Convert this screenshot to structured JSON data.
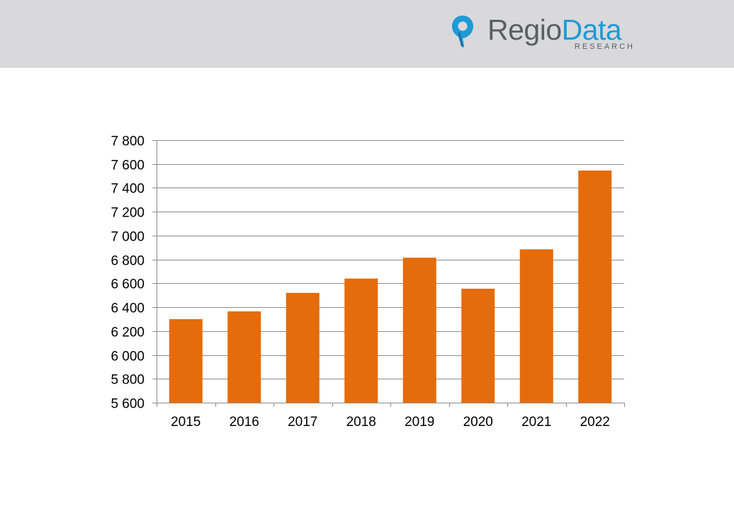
{
  "header": {
    "logo": {
      "name_part1": "Regio",
      "name_part2": "Data",
      "subtitle": "RESEARCH",
      "icon": "map-pin-icon",
      "colors": {
        "grey": "#5c5e62",
        "blue": "#1e9ad6"
      }
    },
    "background": "#d9d9dc"
  },
  "chart_data": {
    "type": "bar",
    "categories": [
      "2015",
      "2016",
      "2017",
      "2018",
      "2019",
      "2020",
      "2021",
      "2022"
    ],
    "values": [
      6300,
      6365,
      6520,
      6640,
      6815,
      6555,
      6885,
      7545
    ],
    "title": "",
    "xlabel": "",
    "ylabel": "",
    "ylim": [
      5600,
      7800
    ],
    "yticks": [
      5600,
      5800,
      6000,
      6200,
      6400,
      6600,
      6800,
      7000,
      7200,
      7400,
      7600,
      7800
    ],
    "ytick_labels": [
      "5 600",
      "5 800",
      "6 000",
      "6 200",
      "6 400",
      "6 600",
      "6 800",
      "7 000",
      "7 200",
      "7 400",
      "7 600",
      "7 800"
    ],
    "grid": true,
    "legend": "none",
    "bar_color": "#e46c0a"
  }
}
